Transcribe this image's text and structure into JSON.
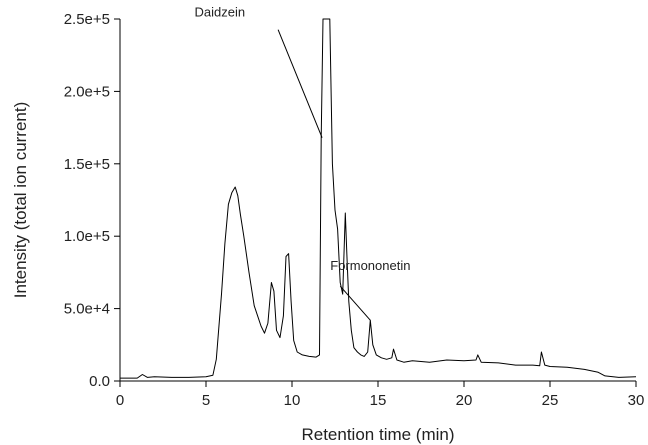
{
  "chart_data": {
    "type": "line",
    "title": "",
    "xlabel": "Retention time (min)",
    "ylabel": "Intensity (total ion current)",
    "xlim": [
      0,
      30
    ],
    "ylim": [
      0,
      250000
    ],
    "x_ticks": [
      0,
      5,
      10,
      15,
      20,
      25,
      30
    ],
    "x_tick_labels": [
      "0",
      "5",
      "10",
      "15",
      "20",
      "25",
      "30"
    ],
    "y_ticks": [
      0,
      50000,
      100000,
      150000,
      200000,
      250000
    ],
    "y_tick_labels": [
      "0.0",
      "5.0e+4",
      "1.0e+5",
      "1.5e+5",
      "2.0e+5",
      "2.5e+5"
    ],
    "grid": false,
    "line_color": "#000000",
    "series": [
      {
        "x": [
          0,
          1.0,
          1.3,
          1.6,
          2.0,
          3.0,
          4.0,
          5.0,
          5.4,
          5.6,
          5.9,
          6.1,
          6.3,
          6.5,
          6.7,
          6.85,
          7.0,
          7.2,
          7.5,
          7.8,
          8.0,
          8.2,
          8.4,
          8.6,
          8.8,
          8.95,
          9.1,
          9.3,
          9.5,
          9.65,
          9.8,
          9.95,
          10.1,
          10.3,
          10.6,
          11.0,
          11.4,
          11.6,
          11.7,
          11.8,
          11.95,
          12.05,
          12.2,
          12.35,
          12.5,
          12.65,
          12.8,
          12.95,
          13.1,
          13.2,
          13.3,
          13.45,
          13.6,
          13.8,
          14.0,
          14.2,
          14.4,
          14.55,
          14.7,
          14.9,
          15.2,
          15.5,
          15.8,
          15.9,
          16.1,
          16.5,
          17.0,
          18.0,
          19.0,
          20.0,
          20.7,
          20.8,
          21.0,
          22.0,
          23.0,
          24.0,
          24.4,
          24.5,
          24.7,
          25.0,
          26.0,
          27.0,
          27.8,
          28.2,
          29.0,
          30.0
        ],
        "y": [
          2000,
          2000,
          4500,
          2500,
          3000,
          2500,
          2500,
          3000,
          4000,
          15000,
          60000,
          95000,
          122000,
          130000,
          134000,
          128000,
          115000,
          100000,
          75000,
          52000,
          45000,
          38000,
          33000,
          40000,
          68000,
          62000,
          35000,
          30000,
          45000,
          86000,
          88000,
          55000,
          28000,
          20000,
          18000,
          17000,
          16500,
          18000,
          168000,
          250000,
          250000,
          250000,
          250000,
          150000,
          118000,
          105000,
          68000,
          60000,
          116000,
          85000,
          55000,
          35000,
          23000,
          20000,
          18000,
          17000,
          20000,
          42000,
          25000,
          18000,
          16000,
          15000,
          16000,
          22000,
          14500,
          13000,
          14000,
          13000,
          14500,
          14000,
          14500,
          18000,
          13000,
          12500,
          11000,
          11000,
          10500,
          20000,
          11000,
          10000,
          9500,
          8000,
          6000,
          3500,
          2500,
          3000
        ]
      }
    ],
    "annotations": [
      {
        "text": "Daidzein",
        "x": 11.75,
        "y": 168000
      },
      {
        "text": "Formononetin",
        "x": 14.55,
        "y": 42000
      }
    ]
  }
}
